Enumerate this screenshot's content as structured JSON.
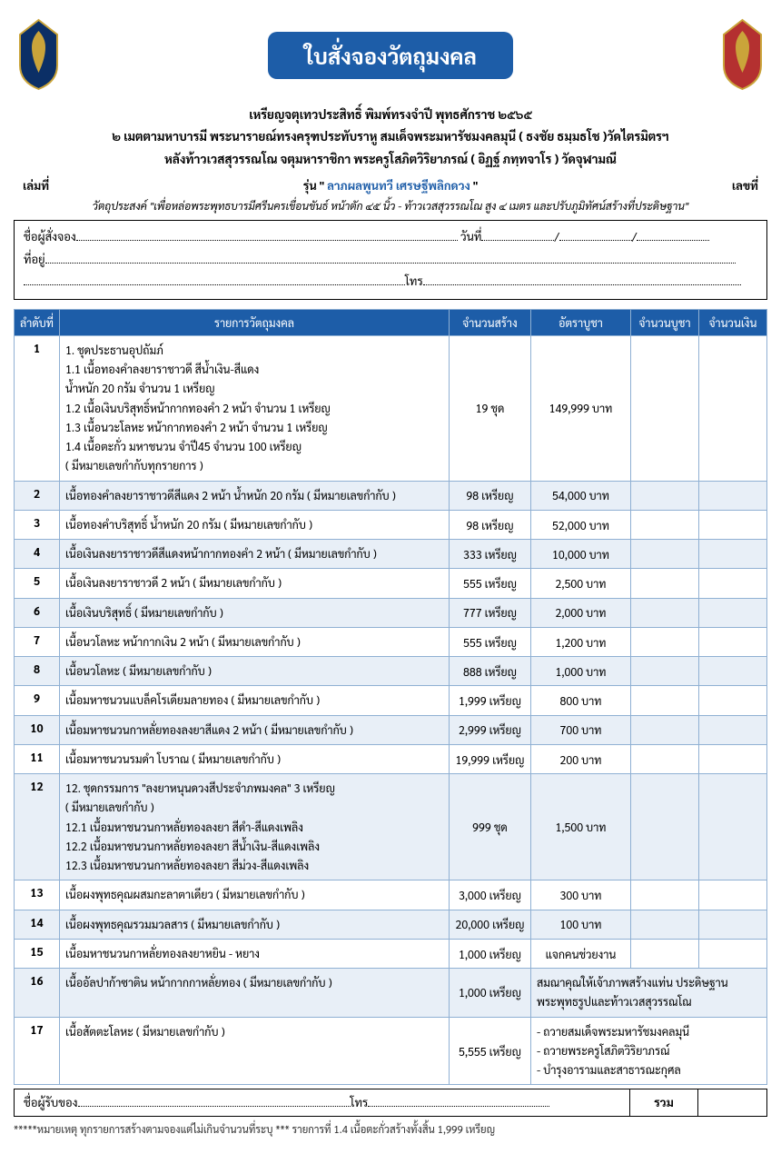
{
  "colors": {
    "blue": "#1d5da8",
    "cell_border": "#8fb0d3",
    "row_alt": "#e8eff7",
    "bg": "#ffffff"
  },
  "header": {
    "title": "ใบสั่งจองวัตถุมงคล",
    "line1": "เหรียญจตุเทวประสิทธิ์ พิมพ์ทรงจำปี พุทธศักราช ๒๕๖๕",
    "line2": "๒ เมตตามหาบารมี พระนารายณ์ทรงครุฑประทับราหู สมเด็จพระมหารัชมงคลมุนี ( ธงชัย ธมฺมธโช )วัดไตรมิตรฯ",
    "line3": "หลังท้าวเวสสุวรรณโณ จตุมหาราชิกา พระครูโสภิตวิริยาภรณ์ ( อิฏฐ์ ภทฺทจาโร ) วัดจุฬามณี",
    "book_label": "เล่มที่",
    "run_prefix": "รุ่น \"",
    "run_name": " ลาภผลพูนทวี เศรษฐีพลิกดวง ",
    "run_suffix": "\"",
    "num_label": "เลขที่",
    "purpose": "วัตถุประสงค์ \"เพื่อหล่อพระพุทธบารมีศรีนครเขื่อนขันธ์ หน้าตัก ๔๕ นิ้ว - ท้าวเวสสุวรรณโณ สูง ๔ เมตร และปรับภูมิทัศน์สร้างที่ประดิษฐาน\""
  },
  "form": {
    "name_label": "ชื่อผู้สั่งจอง",
    "date_label": "วันที่",
    "addr_label": "ที่อยู่",
    "tel_label": "โทร"
  },
  "table": {
    "headers": [
      "ลำดับที่",
      "รายการวัตถุมงคล",
      "จำนวนสร้าง",
      "อัตราบูชา",
      "จำนวนบูชา",
      "จำนวนเงิน"
    ],
    "rows": [
      {
        "idx": "1",
        "item": "1. ชุดประธานอุปถัมภ์\n1.1 เนื้อทองคำลงยาราชาวดี สีน้ำเงิน-สีแดง\n      น้ำหนัก 20 กรัม จำนวน 1 เหรียญ\n1.2 เนื้อเงินบริสุทธิ์หน้ากากทองคำ 2 หน้า จำนวน 1 เหรียญ\n1.3 เนื้อนวะโลหะ หน้ากากทองคำ 2 หน้า จำนวน 1 เหรียญ\n1.4 เนื้อตะกั่ว มหาชนวน จำปี45 จำนวน 100 เหรียญ\n( มีหมายเลขกำกับทุกรายการ )",
        "qty": "19 ชุด",
        "price": "149,999 บาท"
      },
      {
        "idx": "2",
        "item": "เนื้อทองคำลงยาราชาวดีสีแดง 2 หน้า น้ำหนัก 20 กรัม ( มีหมายเลขกำกับ )",
        "qty": "98 เหรียญ",
        "price": "54,000 บาท"
      },
      {
        "idx": "3",
        "item": "เนื้อทองคำบริสุทธิ์ น้ำหนัก 20 กรัม ( มีหมายเลขกำกับ )",
        "qty": "98 เหรียญ",
        "price": "52,000 บาท"
      },
      {
        "idx": "4",
        "item": "เนื้อเงินลงยาราชาวดีสีแดงหน้ากากทองคำ 2 หน้า ( มีหมายเลขกำกับ )",
        "qty": "333 เหรียญ",
        "price": "10,000 บาท"
      },
      {
        "idx": "5",
        "item": "เนื้อเงินลงยาราชาวดี 2 หน้า ( มีหมายเลขกำกับ )",
        "qty": "555 เหรียญ",
        "price": "2,500 บาท"
      },
      {
        "idx": "6",
        "item": "เนื้อเงินบริสุทธิ์ ( มีหมายเลขกำกับ )",
        "qty": "777 เหรียญ",
        "price": "2,000 บาท"
      },
      {
        "idx": "7",
        "item": "เนื้อนวโลหะ หน้ากากเงิน 2 หน้า ( มีหมายเลขกำกับ )",
        "qty": "555 เหรียญ",
        "price": "1,200 บาท"
      },
      {
        "idx": "8",
        "item": "เนื้อนวโลหะ ( มีหมายเลขกำกับ )",
        "qty": "888 เหรียญ",
        "price": "1,000 บาท"
      },
      {
        "idx": "9",
        "item": "เนื้อมหาชนวนแบล็คโรเดียมลายทอง ( มีหมายเลขกำกับ )",
        "qty": "1,999 เหรียญ",
        "price": "800 บาท"
      },
      {
        "idx": "10",
        "item": "เนื้อมหาชนวนกาหลั่ยทองลงยาสีแดง 2 หน้า ( มีหมายเลขกำกับ )",
        "qty": "2,999 เหรียญ",
        "price": "700 บาท"
      },
      {
        "idx": "11",
        "item": "เนื้อมหาชนวนรมดำ โบราณ ( มีหมายเลขกำกับ )",
        "qty": "19,999 เหรียญ",
        "price": "200 บาท"
      },
      {
        "idx": "12",
        "item": "12. ชุดกรรมการ \"ลงยาหนุนดวงสีประจำภพมงคล\"  3 เหรียญ\n( มีหมายเลขกำกับ )\n12.1 เนื้อมหาชนวนกาหลั่ยทองลงยา สีดำ-สีแดงเพลิง\n12.2 เนื้อมหาชนวนกาหลั่ยทองลงยา สีน้ำเงิน-สีแดงเพลิง\n12.3 เนื้อมหาชนวนกาหลั่ยทองลงยา สีม่วง-สีแดงเพลิง",
        "qty": "999 ชุด",
        "price": "1,500 บาท"
      },
      {
        "idx": "13",
        "item": "เนื้อผงพุทธคุณผสมกะลาตาเดียว ( มีหมายเลขกำกับ )",
        "qty": "3,000 เหรียญ",
        "price": "300 บาท"
      },
      {
        "idx": "14",
        "item": "เนื้อผงพุทธคุณรวมมวลสาร ( มีหมายเลขกำกับ )",
        "qty": "20,000 เหรียญ",
        "price": "100 บาท"
      },
      {
        "idx": "15",
        "item": "เนื้อมหาชนวนกาหลั่ยทองลงยาหยิน - หยาง",
        "qty": "1,000 เหรียญ",
        "price": "แจกคนช่วยงาน"
      },
      {
        "idx": "16",
        "item": "เนื้ออัลปาก้าซาติน หน้ากากกาหลั่ยทอง ( มีหมายเลขกำกับ )",
        "qty": "1,000 เหรียญ",
        "price": "สมณาคุณให้เจ้าภาพสร้างแท่น ประดิษฐาน\nพระพุทธรูปและท้าวเวสสุวรรณโณ",
        "price_wide": true
      },
      {
        "idx": "17",
        "item": "เนื้อสัตตะโลหะ ( มีหมายเลขกำกับ )",
        "qty": "5,555 เหรียญ",
        "price": "- ถวายสมเด็จพระมหารัชมงคลมุนี\n- ถวายพระครูโสภิตวิริยาภรณ์\n- บำรุงอารามและสาธารณะกุศล",
        "price_wide": true
      }
    ]
  },
  "footer": {
    "receiver_label": "ชื่อผู้รับของ",
    "tel_label": "โทร",
    "sum_label": "รวม",
    "note": "*****หมายเหตุ ทุกรายการสร้างตามจองแต่ไม่เกินจำนวนที่ระบุ ***   รายการที่ 1.4 เนื้อตะกั่วสร้างทั้งสิ้น 1,999 เหรียญ"
  }
}
